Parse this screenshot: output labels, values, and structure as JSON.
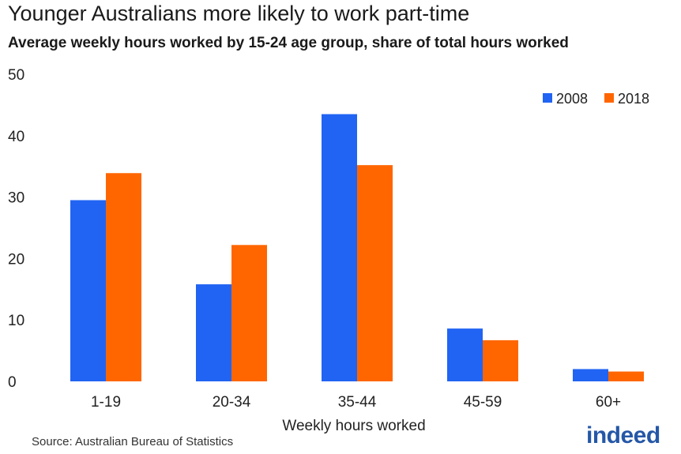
{
  "header": {
    "title": "Younger Australians more likely to work part-time",
    "subtitle": "Average weekly hours worked by 15-24 age group, share of total hours worked"
  },
  "footer": {
    "source": "Source: Australian Bureau of Statistics",
    "logo": "indeed"
  },
  "chart_data": {
    "type": "bar",
    "title": "Younger Australians more likely to work part-time",
    "subtitle": "Average weekly hours worked by 15-24 age group, share of total hours worked",
    "xlabel": "Weekly hours worked",
    "ylabel": "",
    "categories": [
      "1-19",
      "20-34",
      "35-44",
      "45-59",
      "60+"
    ],
    "series": [
      {
        "name": "2008",
        "color": "#2164f3",
        "values": [
          29.5,
          15.8,
          43.5,
          8.6,
          2.0
        ]
      },
      {
        "name": "2018",
        "color": "#ff6600",
        "values": [
          33.9,
          22.2,
          35.2,
          6.7,
          1.6
        ]
      }
    ],
    "ylim": [
      0,
      50
    ],
    "yticks": [
      0,
      10,
      20,
      30,
      40,
      50
    ],
    "grid": false,
    "legend": "top-right"
  }
}
